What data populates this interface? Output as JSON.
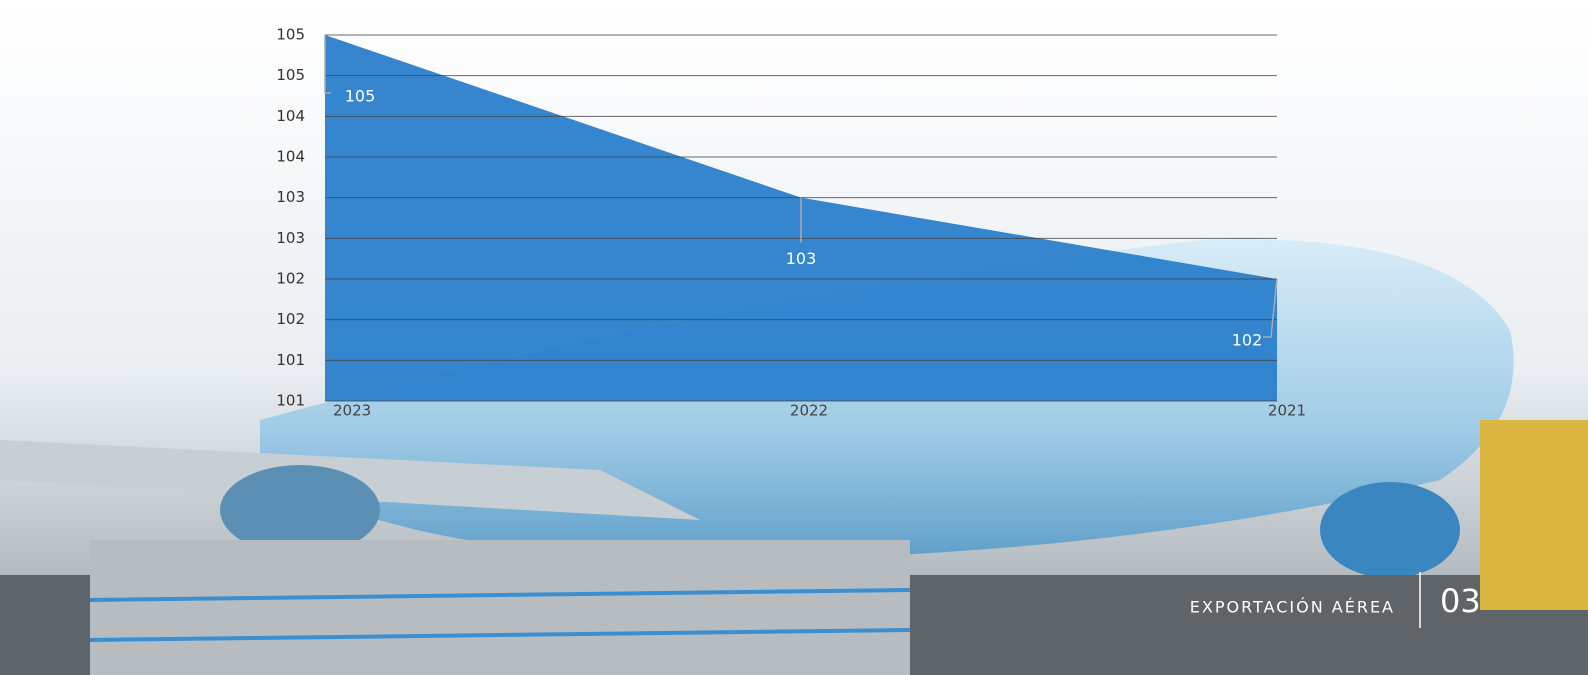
{
  "chart_data": {
    "type": "area",
    "categories": [
      "2023",
      "2022",
      "2021"
    ],
    "values": [
      105,
      103,
      102
    ],
    "color": "#2a80cb",
    "ylim": [
      100.5,
      105
    ],
    "yticks": [
      {
        "value": 100.5,
        "label": "101"
      },
      {
        "value": 101,
        "label": "101"
      },
      {
        "value": 101.5,
        "label": "102"
      },
      {
        "value": 102,
        "label": "102"
      },
      {
        "value": 102.5,
        "label": "103"
      },
      {
        "value": 103,
        "label": "103"
      },
      {
        "value": 103.5,
        "label": "104"
      },
      {
        "value": 104,
        "label": "104"
      },
      {
        "value": 104.5,
        "label": "105"
      },
      {
        "value": 105,
        "label": "105"
      }
    ],
    "grid": true
  },
  "footer": {
    "section": "EXPORTACIÓN AÉREA",
    "page": "03"
  }
}
